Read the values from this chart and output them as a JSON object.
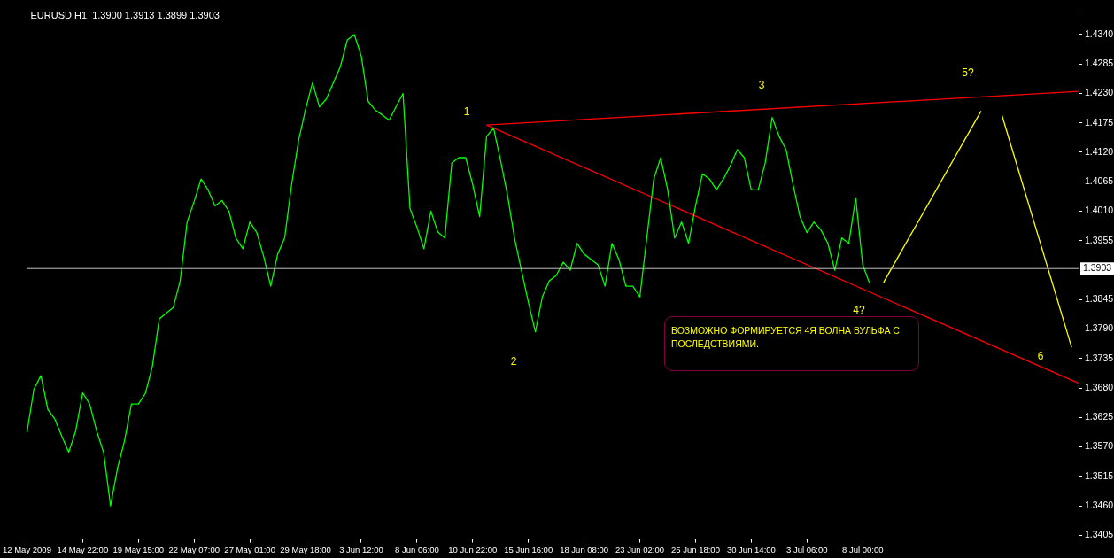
{
  "chart_data": {
    "type": "line",
    "title": "EURUSD,H1  1.3900 1.3913 1.3899 1.3903",
    "categories": [
      "12 May 2009",
      null,
      null,
      null,
      null,
      null,
      null,
      null,
      "14 May 22:00",
      null,
      null,
      null,
      null,
      null,
      null,
      null,
      "19 May 15:00",
      null,
      null,
      null,
      null,
      null,
      null,
      null,
      "22 May 07:00",
      null,
      null,
      null,
      null,
      null,
      null,
      null,
      "27 May 01:00",
      null,
      null,
      null,
      null,
      null,
      null,
      null,
      "29 May 18:00",
      null,
      null,
      null,
      null,
      null,
      null,
      null,
      "3 Jun 12:00",
      null,
      null,
      null,
      null,
      null,
      null,
      null,
      "8 Jun 06:00",
      null,
      null,
      null,
      null,
      null,
      null,
      null,
      "10 Jun 22:00",
      null,
      null,
      null,
      null,
      null,
      null,
      null,
      "15 Jun 16:00",
      null,
      null,
      null,
      null,
      null,
      null,
      null,
      "18 Jun 08:00",
      null,
      null,
      null,
      null,
      null,
      null,
      null,
      "23 Jun 02:00",
      null,
      null,
      null,
      null,
      null,
      null,
      null,
      "25 Jun 18:00",
      null,
      null,
      null,
      null,
      null,
      null,
      null,
      "30 Jun 14:00",
      null,
      null,
      null,
      null,
      null,
      null,
      null,
      "3 Jul 06:00",
      null,
      null,
      null,
      null,
      null,
      null,
      null,
      "8 Jul 00:00",
      null,
      null,
      null,
      null,
      null,
      null,
      null,
      null,
      null,
      null,
      null,
      null,
      null,
      null,
      null,
      null,
      null,
      null,
      null,
      null,
      null,
      null,
      null,
      null,
      null,
      null,
      null,
      null,
      null,
      null,
      null
    ],
    "ylim": [
      1.3398,
      1.4389
    ],
    "yticks": [
      {
        "value": 1.3405,
        "label": "1.3405"
      },
      {
        "value": 1.346,
        "label": "1.3460"
      },
      {
        "value": 1.3515,
        "label": "1.3515"
      },
      {
        "value": 1.357,
        "label": "1.3570"
      },
      {
        "value": 1.3625,
        "label": "1.3625"
      },
      {
        "value": 1.368,
        "label": "1.3680"
      },
      {
        "value": 1.3735,
        "label": "1.3735"
      },
      {
        "value": 1.379,
        "label": "1.3790"
      },
      {
        "value": 1.3845,
        "label": "1.3845"
      },
      {
        "value": 1.3955,
        "label": "1.3955"
      },
      {
        "value": 1.401,
        "label": "1.4010"
      },
      {
        "value": 1.4065,
        "label": "1.4065"
      },
      {
        "value": 1.412,
        "label": "1.4120"
      },
      {
        "value": 1.4175,
        "label": "1.4175"
      },
      {
        "value": 1.423,
        "label": "1.4230"
      },
      {
        "value": 1.4285,
        "label": "1.4285"
      },
      {
        "value": 1.434,
        "label": "1.4340"
      }
    ],
    "grid": false,
    "legend": false,
    "marker": "none",
    "line_style": "solid",
    "ref_lines": [
      {
        "axis": "y",
        "value": 1.3903,
        "label": "1.3903",
        "color": "#c0c0c0"
      }
    ],
    "series": [
      {
        "color": "#00ff00",
        "values": [
          1.3597,
          1.3678,
          1.3703,
          1.364,
          1.3622,
          1.359,
          1.356,
          1.36,
          1.3671,
          1.365,
          1.36,
          1.356,
          1.346,
          1.353,
          1.3581,
          1.365,
          1.365,
          1.367,
          1.372,
          1.3809,
          1.382,
          1.383,
          1.388,
          1.399,
          1.4028,
          1.407,
          1.405,
          1.402,
          1.403,
          1.401,
          1.396,
          1.394,
          1.399,
          1.397,
          1.3925,
          1.387,
          1.393,
          1.396,
          1.406,
          1.4142,
          1.42,
          1.425,
          1.4205,
          1.422,
          1.425,
          1.428,
          1.433,
          1.434,
          1.43,
          1.4215,
          1.4199,
          1.419,
          1.418,
          1.4205,
          1.423,
          1.4015,
          1.398,
          1.394,
          1.401,
          1.3971,
          1.396,
          1.41,
          1.411,
          1.411,
          1.406,
          1.4,
          1.415,
          1.4165,
          1.4105,
          1.404,
          1.396,
          1.39,
          1.384,
          1.3785,
          1.385,
          1.388,
          1.389,
          1.3915,
          1.39,
          1.395,
          1.393,
          1.392,
          1.391,
          1.387,
          1.395,
          1.392,
          1.387,
          1.387,
          1.385,
          1.396,
          1.407,
          1.411,
          1.405,
          1.396,
          1.399,
          1.395,
          1.402,
          1.408,
          1.407,
          1.405,
          1.407,
          1.4095,
          1.4125,
          1.411,
          1.405,
          1.405,
          1.41,
          1.4185,
          1.415,
          1.4125,
          1.406,
          1.4,
          1.397,
          1.399,
          1.3975,
          1.395,
          1.39,
          1.396,
          1.395,
          1.4035,
          1.391,
          1.3875,
          null,
          null,
          null,
          null,
          null,
          null,
          null,
          null,
          null,
          null,
          null,
          null,
          null,
          null,
          null,
          null,
          null,
          null,
          null,
          null,
          null,
          null,
          null,
          null,
          null,
          null,
          null,
          null,
          null,
          null
        ]
      },
      {
        "color": "#ff0000",
        "values": [
          null,
          null,
          null,
          null,
          null,
          null,
          null,
          null,
          null,
          null,
          null,
          null,
          null,
          null,
          null,
          null,
          null,
          null,
          null,
          null,
          null,
          null,
          null,
          null,
          null,
          null,
          null,
          null,
          null,
          null,
          null,
          null,
          null,
          null,
          null,
          null,
          null,
          null,
          null,
          null,
          null,
          null,
          null,
          null,
          null,
          null,
          null,
          null,
          null,
          null,
          null,
          null,
          null,
          null,
          null,
          null,
          null,
          null,
          null,
          null,
          null,
          null,
          null,
          null,
          null,
          null,
          1.4171,
          null,
          null,
          null,
          null,
          null,
          null,
          null,
          null,
          null,
          null,
          null,
          null,
          null,
          null,
          null,
          null,
          null,
          null,
          null,
          null,
          null,
          null,
          null,
          null,
          null,
          null,
          null,
          null,
          null,
          null,
          null,
          null,
          null,
          null,
          null,
          null,
          null,
          null,
          null,
          null,
          null,
          null,
          null,
          null,
          null,
          null,
          null,
          null,
          null,
          null,
          null,
          null,
          null,
          null,
          null,
          null,
          null,
          null,
          null,
          null,
          null,
          null,
          null,
          null,
          null,
          null,
          null,
          null,
          null,
          null,
          null,
          null,
          null,
          null,
          null,
          null,
          null,
          null,
          null,
          null,
          null,
          null,
          null,
          null,
          1.4234
        ]
      },
      {
        "color": "#ff0000",
        "values": [
          null,
          null,
          null,
          null,
          null,
          null,
          null,
          null,
          null,
          null,
          null,
          null,
          null,
          null,
          null,
          null,
          null,
          null,
          null,
          null,
          null,
          null,
          null,
          null,
          null,
          null,
          null,
          null,
          null,
          null,
          null,
          null,
          null,
          null,
          null,
          null,
          null,
          null,
          null,
          null,
          null,
          null,
          null,
          null,
          null,
          null,
          null,
          null,
          null,
          null,
          null,
          null,
          null,
          null,
          null,
          null,
          null,
          null,
          null,
          null,
          null,
          null,
          null,
          null,
          null,
          null,
          1.4171,
          null,
          null,
          null,
          null,
          null,
          null,
          null,
          null,
          null,
          null,
          null,
          null,
          null,
          null,
          null,
          null,
          null,
          null,
          null,
          null,
          null,
          null,
          null,
          null,
          null,
          null,
          null,
          null,
          null,
          null,
          null,
          null,
          null,
          null,
          null,
          null,
          null,
          null,
          null,
          null,
          null,
          null,
          null,
          null,
          null,
          null,
          null,
          null,
          null,
          null,
          null,
          null,
          null,
          null,
          null,
          null,
          null,
          null,
          null,
          null,
          null,
          null,
          null,
          null,
          null,
          null,
          null,
          null,
          null,
          null,
          null,
          null,
          null,
          null,
          null,
          null,
          null,
          null,
          null,
          null,
          null,
          null,
          null,
          null,
          1.3689
        ]
      },
      {
        "color": "#ffff00",
        "values": [
          null,
          null,
          null,
          null,
          null,
          null,
          null,
          null,
          null,
          null,
          null,
          null,
          null,
          null,
          null,
          null,
          null,
          null,
          null,
          null,
          null,
          null,
          null,
          null,
          null,
          null,
          null,
          null,
          null,
          null,
          null,
          null,
          null,
          null,
          null,
          null,
          null,
          null,
          null,
          null,
          null,
          null,
          null,
          null,
          null,
          null,
          null,
          null,
          null,
          null,
          null,
          null,
          null,
          null,
          null,
          null,
          null,
          null,
          null,
          null,
          null,
          null,
          null,
          null,
          null,
          null,
          null,
          null,
          null,
          null,
          null,
          null,
          null,
          null,
          null,
          null,
          null,
          null,
          null,
          null,
          null,
          null,
          null,
          null,
          null,
          null,
          null,
          null,
          null,
          null,
          null,
          null,
          null,
          null,
          null,
          null,
          null,
          null,
          null,
          null,
          null,
          null,
          null,
          null,
          null,
          null,
          null,
          null,
          null,
          null,
          null,
          null,
          null,
          null,
          null,
          null,
          null,
          null,
          null,
          null,
          null,
          null,
          null,
          1.3877,
          null,
          null,
          null,
          null,
          null,
          null,
          null,
          null,
          null,
          null,
          null,
          null,
          null,
          1.4197,
          null,
          null,
          null,
          null,
          null,
          null,
          null,
          null,
          null,
          null,
          null,
          null,
          null,
          null
        ]
      },
      {
        "color": "#ffff00",
        "values": [
          null,
          null,
          null,
          null,
          null,
          null,
          null,
          null,
          null,
          null,
          null,
          null,
          null,
          null,
          null,
          null,
          null,
          null,
          null,
          null,
          null,
          null,
          null,
          null,
          null,
          null,
          null,
          null,
          null,
          null,
          null,
          null,
          null,
          null,
          null,
          null,
          null,
          null,
          null,
          null,
          null,
          null,
          null,
          null,
          null,
          null,
          null,
          null,
          null,
          null,
          null,
          null,
          null,
          null,
          null,
          null,
          null,
          null,
          null,
          null,
          null,
          null,
          null,
          null,
          null,
          null,
          null,
          null,
          null,
          null,
          null,
          null,
          null,
          null,
          null,
          null,
          null,
          null,
          null,
          null,
          null,
          null,
          null,
          null,
          null,
          null,
          null,
          null,
          null,
          null,
          null,
          null,
          null,
          null,
          null,
          null,
          null,
          null,
          null,
          null,
          null,
          null,
          null,
          null,
          null,
          null,
          null,
          null,
          null,
          null,
          null,
          null,
          null,
          null,
          null,
          null,
          null,
          null,
          null,
          null,
          null,
          null,
          null,
          null,
          null,
          null,
          null,
          null,
          null,
          null,
          null,
          null,
          null,
          null,
          null,
          null,
          null,
          null,
          null,
          null,
          1.4189,
          null,
          null,
          null,
          null,
          null,
          null,
          null,
          null,
          null,
          1.3756,
          null
        ]
      }
    ],
    "annotations": [
      "1",
      "2",
      "3",
      "4?",
      "5?",
      "6",
      "ВОЗМОЖНО ФОРМИРУЕТСЯ 4Я ВОЛНА ВУЛЬФА С ПОСЛЕДСТВИЯМИ."
    ]
  }
}
